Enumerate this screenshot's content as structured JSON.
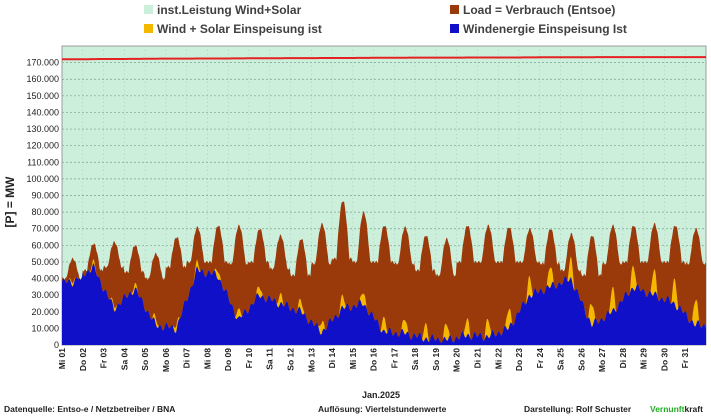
{
  "chart_data": {
    "type": "area",
    "xlabel": "Jan.2025",
    "ylabel": "[P] = MW",
    "ylim": [
      0,
      180000
    ],
    "y_ticks": [
      "0",
      "10.000",
      "20.000",
      "30.000",
      "40.000",
      "50.000",
      "60.000",
      "70.000",
      "80.000",
      "90.000",
      "100.000",
      "110.000",
      "120.000",
      "130.000",
      "140.000",
      "150.000",
      "160.000",
      "170.000"
    ],
    "y_tick_values": [
      0,
      10000,
      20000,
      30000,
      40000,
      50000,
      60000,
      70000,
      80000,
      90000,
      100000,
      110000,
      120000,
      130000,
      140000,
      150000,
      160000,
      170000
    ],
    "x_ticks": [
      "Mi 01",
      "Do 02",
      "Fr 03",
      "Sa 04",
      "So 05",
      "Mo 06",
      "Di 07",
      "Mi 08",
      "Do 09",
      "Fr 10",
      "Sa 11",
      "So 12",
      "Mo 13",
      "Di 14",
      "Mi 15",
      "Do 16",
      "Fr 17",
      "Sa 18",
      "So 19",
      "Mo 20",
      "Di 21",
      "Mi 22",
      "Do 23",
      "Fr 24",
      "Sa 25",
      "So 26",
      "Mo 27",
      "Di 28",
      "Mi 29",
      "Do 30",
      "Fr 31"
    ],
    "grid": true,
    "legend_position": "top",
    "series": [
      {
        "name": "inst.Leistung Wind+Solar",
        "color": "#ccefdc",
        "line_color": "#e52222",
        "values": [
          172000,
          172000,
          172200,
          172200,
          172300,
          172400,
          172400,
          172500,
          172500,
          172600,
          172600,
          172700,
          172700,
          172800,
          172800,
          172900,
          172900,
          173000,
          173000,
          173000,
          173100,
          173100,
          173100,
          173200,
          173200,
          173200,
          173300,
          173300,
          173300,
          173300,
          173300
        ]
      },
      {
        "name": "Load =  Verbrauch (Entsoe)",
        "color": "#9a3a0b",
        "day_min": [
          40000,
          45000,
          47000,
          44000,
          40000,
          47000,
          50000,
          50000,
          49000,
          50000,
          46000,
          42000,
          49000,
          52000,
          50000,
          50000,
          49000,
          45000,
          42000,
          50000,
          50000,
          50000,
          50000,
          49000,
          45000,
          42000,
          49000,
          50000,
          50000,
          50000,
          49000
        ],
        "day_max": [
          52000,
          61000,
          62000,
          60000,
          55000,
          65000,
          71000,
          72000,
          72000,
          70000,
          66000,
          64000,
          73000,
          87000,
          80000,
          72000,
          71000,
          66000,
          64000,
          72000,
          72000,
          71000,
          70000,
          70000,
          67000,
          66000,
          72000,
          72000,
          73000,
          72000,
          70000
        ]
      },
      {
        "name": "Wind + Solar Einspeisung ist",
        "color": "#f5b800",
        "solar_peak": [
          2000,
          2500,
          2500,
          3000,
          3500,
          3500,
          4000,
          4500,
          5000,
          5500,
          6000,
          6000,
          6500,
          7000,
          7500,
          8000,
          8500,
          9000,
          9500,
          10000,
          10500,
          11000,
          11500,
          12000,
          12500,
          13000,
          13500,
          14000,
          14500,
          15000,
          15500
        ]
      },
      {
        "name": "Windenergie Einspeisung Ist",
        "color": "#1010c8",
        "daily": [
          38000,
          47000,
          22000,
          34000,
          12000,
          10000,
          45000,
          42000,
          15000,
          30000,
          25000,
          20000,
          8000,
          22000,
          25000,
          8000,
          7000,
          4000,
          3000,
          6000,
          5000,
          10000,
          30000,
          35000,
          40000,
          12000,
          20000,
          35000,
          30000,
          25000,
          12000
        ]
      }
    ]
  },
  "footer": {
    "source": "Datenquelle:  Entso-e  / Netzbetreiber / BNA",
    "resolution": "Auflösung: Viertelstundenwerte",
    "author": "Darstellung:  Rolf Schuster",
    "brand_a": "Vernunft",
    "brand_b": "kraft",
    "brand_color": "#22aa22"
  }
}
